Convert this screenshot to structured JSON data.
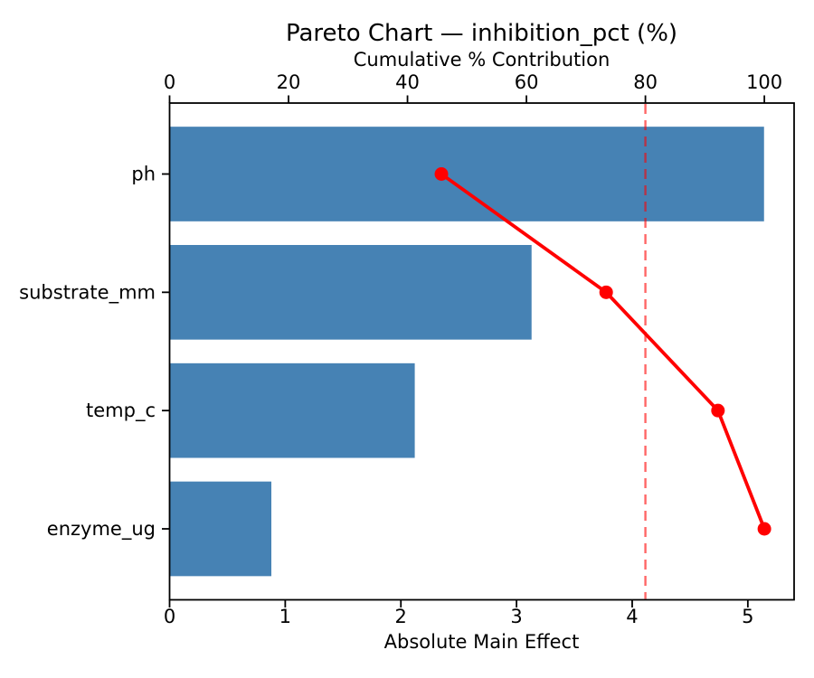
{
  "chart_data": {
    "type": "bar",
    "subtype": "pareto",
    "orientation": "horizontal",
    "title": "Pareto Chart — inhibition_pct (%)",
    "categories": [
      "ph",
      "substrate_mm",
      "temp_c",
      "enzyme_ug"
    ],
    "bar_values": [
      5.14,
      3.13,
      2.12,
      0.88
    ],
    "bar_axis_label": "Absolute Main Effect",
    "bar_xlim": [
      0,
      5.4
    ],
    "bar_ticks": [
      0,
      1,
      2,
      3,
      4,
      5
    ],
    "cumulative_series_name": "Cumulative % Contribution",
    "cumulative_pct": [
      45.7,
      73.4,
      92.2,
      100.0
    ],
    "cumulative_axis_label": "Cumulative % Contribution",
    "cumulative_xlim": [
      0,
      105
    ],
    "cumulative_ticks": [
      0,
      20,
      40,
      60,
      80,
      100
    ],
    "threshold_pct": 80,
    "grid": "off",
    "legend": "none",
    "colors": {
      "bar": "#4682B4",
      "line": "#FF0000",
      "marker": "#FF0000",
      "threshold": "rgba(255,0,0,0.6)",
      "spine": "#000000",
      "text": "#000000"
    }
  }
}
